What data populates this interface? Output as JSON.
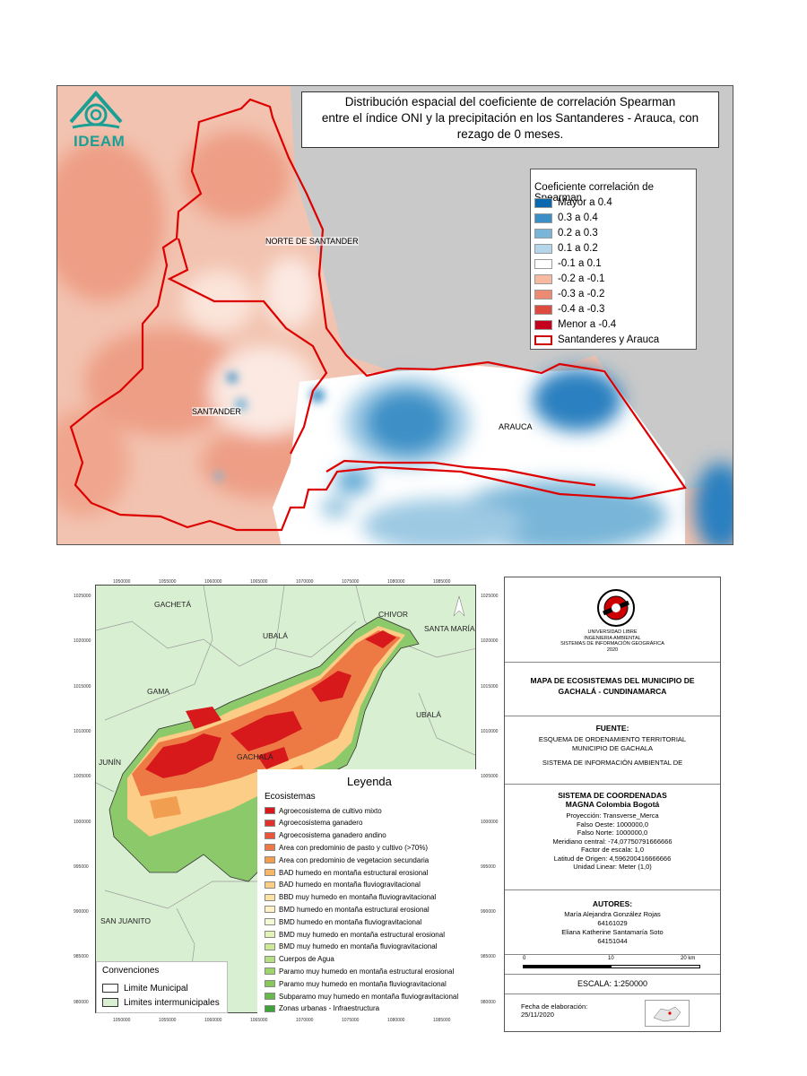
{
  "top_map": {
    "logo_text": "IDEAM",
    "title_lines": [
      "Distribución espacial del coeficiente de correlación Spearman",
      "entre el índice ONI y la precipitación en los Santanderes - Arauca, con",
      "rezago de 0 meses."
    ],
    "labels": {
      "norte_santander": "NORTE DE SANTANDER",
      "santander": "SANTANDER",
      "arauca": "ARAUCA"
    },
    "legend": {
      "title": "Coeficiente correlación de Spearman",
      "items": [
        {
          "label": "Mayor a 0.4",
          "color": "#0a69ae"
        },
        {
          "label": "0.3 a 0.4",
          "color": "#3b8fc6"
        },
        {
          "label": "0.2 a 0.3",
          "color": "#78b5d8"
        },
        {
          "label": "0.1 a 0.2",
          "color": "#b3d6ea"
        },
        {
          "label": "-0.1 a 0.1",
          "color": "#ffffff"
        },
        {
          "label": "-0.2 a -0.1",
          "color": "#f7b9a0"
        },
        {
          "label": "-0.3 a -0.2",
          "color": "#ec8a73"
        },
        {
          "label": "-0.4 a -0.3",
          "color": "#dc4a40"
        },
        {
          "label": "Menor a -0.4",
          "color": "#c4001d"
        },
        {
          "label": "Santanderes y Arauca",
          "color": "#ffffff",
          "border": "#cc0000"
        }
      ]
    }
  },
  "bottom_map": {
    "x_ticks": [
      "1050000",
      "1055000",
      "1060000",
      "1065000",
      "1070000",
      "1075000",
      "1080000",
      "1085000"
    ],
    "y_ticks": [
      "1025000",
      "1020000",
      "1015000",
      "1010000",
      "1005000",
      "1000000",
      "995000",
      "990000",
      "985000",
      "980000"
    ],
    "municipalities": {
      "gacheta": "GACHETÁ",
      "chivor": "CHIVOR",
      "santa_maria": "SANTA MARÍA",
      "ubala_top": "UBALÁ",
      "gama": "GAMA",
      "ubala_right": "UBALÁ",
      "junin": "JUNÍN",
      "gachala": "GACHALÁ",
      "san_juanito": "SAN JUANITO"
    },
    "legend": {
      "title": "Leyenda",
      "subtitle": "Ecosistemas",
      "items": [
        {
          "label": "Agroecosistema de cultivo mixto",
          "color": "#d7191c"
        },
        {
          "label": "Agroecosistema ganadero",
          "color": "#e0322a"
        },
        {
          "label": "Agroecosistema ganadero andino",
          "color": "#e8553a"
        },
        {
          "label": "Area con predominio de pasto y cultivo (>70%)",
          "color": "#ed7a45"
        },
        {
          "label": "Area con predominio de vegetacion secundaria",
          "color": "#f29e50"
        },
        {
          "label": "BAD humedo en montaña estructural erosional",
          "color": "#f7b767"
        },
        {
          "label": "BAD humedo en montaña fluviogravitacional",
          "color": "#fbcd86"
        },
        {
          "label": "BBD muy humedo en montaña fluviogravitacional",
          "color": "#fee2a5"
        },
        {
          "label": "BMD humedo en montaña estructural erosional",
          "color": "#fff3c4"
        },
        {
          "label": "BMD humedo en montaña fluviogravitacional",
          "color": "#f4f8d5"
        },
        {
          "label": "BMD muy humedo en montaña estructural erosional",
          "color": "#e3f2b6"
        },
        {
          "label": "BMD muy humedo en montaña fluviogravitacional",
          "color": "#cdea9a"
        },
        {
          "label": "Cuerpos de Agua",
          "color": "#b6df83"
        },
        {
          "label": "Paramo muy humedo en montaña estructural erosional",
          "color": "#9fd46c"
        },
        {
          "label": "Paramo muy humedo en montaña fluviogravitacional",
          "color": "#85c75b"
        },
        {
          "label": "Subparamo muy humedo en montaña fluviogravitacional",
          "color": "#68b94c"
        },
        {
          "label": "Zonas urbanas - Infraestructura",
          "color": "#3fa33a"
        }
      ]
    },
    "conventions": {
      "title": "Convenciones",
      "items": [
        {
          "label": "Limite Municipal",
          "color": "#ffffff"
        },
        {
          "label": "Limites intermunicipales",
          "color": "#d9efd2"
        }
      ]
    }
  },
  "panel": {
    "university": [
      "UNIVERSIDAD LIBRE",
      "INGENIERIA AMBIENTAL",
      "SISTEMAS DE INFORMACIÓN GEOGRÁFICA",
      "2020"
    ],
    "map_title": [
      "MAPA DE ECOSISTEMAS DEL MUNICIPIO DE",
      "GACHALÁ - CUNDINAMARCA"
    ],
    "fuente_title": "FUENTE:",
    "fuente_lines": [
      "ESQUEMA DE ORDENAMIENTO TERRITORIAL",
      "MUNICIPIO DE GACHALA"
    ],
    "fuente_extra": "SISTEMA DE INFORMACIÓN AMBIENTAL DE",
    "coord_title": [
      "SISTEMA DE COORDENADAS",
      "MAGNA Colombia Bogotá"
    ],
    "coord_lines": [
      "Proyección: Transverse_Merca",
      "Falso Oeste: 1000000,0",
      "Falso Norte: 1000000,0",
      "Meridiano central: -74,07750791666666",
      "Factor de escala: 1,0",
      "Latitud de Origen: 4,596200416666666",
      "Unidad Linear: Meter (1,0)"
    ],
    "authors_title": "AUTORES:",
    "authors_lines": [
      "María Alejandra González Rojas",
      "64161029",
      "Eliana Katherine Santamaría Soto",
      "64151044"
    ],
    "scale_ticks": [
      "0",
      "10",
      "20 km"
    ],
    "scale_text": "ESCALA: 1:250000",
    "date_lines": [
      "Fecha de elaboración:",
      "25/11/2020"
    ]
  }
}
